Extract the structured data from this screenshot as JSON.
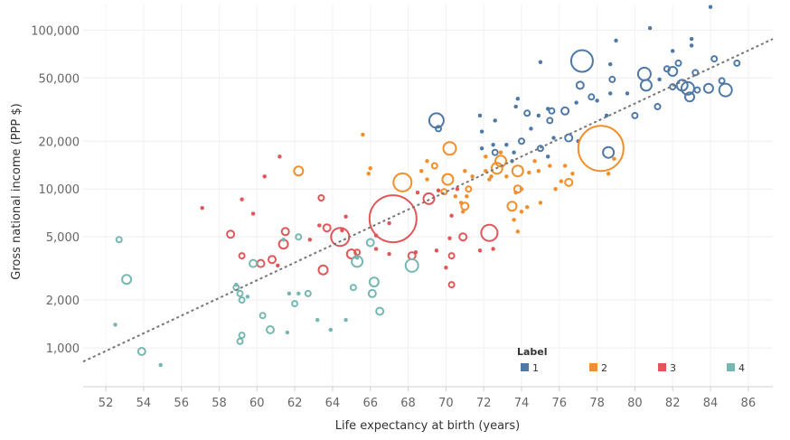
{
  "chart_data": {
    "type": "scatter",
    "xlabel": "Life expectancy at birth (years)",
    "ylabel": "Gross national income (PPP $)",
    "x_ticks": [
      52,
      54,
      56,
      58,
      60,
      62,
      64,
      66,
      68,
      70,
      72,
      74,
      76,
      78,
      80,
      82,
      84,
      86
    ],
    "xlim": [
      50.8,
      87.3
    ],
    "y_scale": "log",
    "y_ticks": [
      1000,
      2000,
      5000,
      10000,
      20000,
      50000,
      100000
    ],
    "y_tick_labels": [
      "1,000",
      "2,000",
      "5,000",
      "10,000",
      "20,000",
      "50,000",
      "100,000"
    ],
    "ylim": [
      570,
      145000
    ],
    "grid": true,
    "trendline": {
      "style": "dashed",
      "x": [
        50.8,
        87.3
      ],
      "y": [
        820,
        88000
      ]
    },
    "legend": {
      "title": "Label",
      "position": "bottom-right",
      "entries": [
        {
          "label": "1",
          "color": "#4e79a7"
        },
        {
          "label": "2",
          "color": "#f28e2b"
        },
        {
          "label": "3",
          "color": "#e15759"
        },
        {
          "label": "4",
          "color": "#76b7b2"
        }
      ]
    },
    "series": [
      {
        "name": "1",
        "color": "#4e79a7",
        "points": [
          [
            84.0,
            140000,
            2
          ],
          [
            83.0,
            88000,
            2
          ],
          [
            80.8,
            103000,
            2
          ],
          [
            79.0,
            86000,
            2
          ],
          [
            77.2,
            64000,
            12
          ],
          [
            75.0,
            63000,
            2
          ],
          [
            78.7,
            61000,
            2
          ],
          [
            82.0,
            74000,
            2
          ],
          [
            83.0,
            80000,
            2
          ],
          [
            85.4,
            62000,
            3
          ],
          [
            84.2,
            66000,
            3
          ],
          [
            82.3,
            62000,
            3
          ],
          [
            81.7,
            57000,
            3
          ],
          [
            82.0,
            55000,
            5
          ],
          [
            83.2,
            54000,
            3
          ],
          [
            80.5,
            53000,
            7
          ],
          [
            81.3,
            49000,
            2
          ],
          [
            80.6,
            45000,
            6
          ],
          [
            82.5,
            45000,
            6
          ],
          [
            82.8,
            43000,
            7
          ],
          [
            83.3,
            42000,
            3
          ],
          [
            84.6,
            48000,
            3
          ],
          [
            83.9,
            43000,
            5
          ],
          [
            84.8,
            42000,
            7
          ],
          [
            82.0,
            44000,
            3
          ],
          [
            82.9,
            38000,
            5
          ],
          [
            77.1,
            45000,
            4
          ],
          [
            78.8,
            49000,
            3
          ],
          [
            78.7,
            40000,
            2
          ],
          [
            77.7,
            38000,
            3
          ],
          [
            76.9,
            35000,
            2
          ],
          [
            76.3,
            31000,
            4
          ],
          [
            78.0,
            36000,
            2
          ],
          [
            79.6,
            40000,
            2
          ],
          [
            81.2,
            33000,
            3
          ],
          [
            80.0,
            29000,
            3
          ],
          [
            78.5,
            29000,
            2
          ],
          [
            75.6,
            31000,
            3
          ],
          [
            75.4,
            32000,
            2
          ],
          [
            73.8,
            37000,
            2
          ],
          [
            73.7,
            33000,
            2
          ],
          [
            74.3,
            30000,
            3
          ],
          [
            74.9,
            29000,
            2
          ],
          [
            75.5,
            27000,
            3
          ],
          [
            72.6,
            27000,
            2
          ],
          [
            71.8,
            29000,
            2
          ],
          [
            69.5,
            27000,
            8
          ],
          [
            69.6,
            24000,
            3
          ],
          [
            71.9,
            23000,
            2
          ],
          [
            74.5,
            24000,
            2
          ],
          [
            75.7,
            21000,
            2
          ],
          [
            76.5,
            21000,
            4
          ],
          [
            77.0,
            20000,
            2
          ],
          [
            74.0,
            20000,
            3
          ],
          [
            73.2,
            19000,
            2
          ],
          [
            72.5,
            19000,
            2
          ],
          [
            72.6,
            17000,
            3
          ],
          [
            75.0,
            18000,
            3
          ],
          [
            73.6,
            17000,
            2
          ],
          [
            78.6,
            17000,
            6
          ],
          [
            73.5,
            15000,
            2
          ],
          [
            75.4,
            16000,
            2
          ],
          [
            71.9,
            18000,
            2
          ]
        ]
      },
      {
        "name": "2",
        "color": "#f28e2b",
        "points": [
          [
            78.2,
            18000,
            25
          ],
          [
            70.2,
            18000,
            7
          ],
          [
            72.9,
            15000,
            6
          ],
          [
            72.7,
            13500,
            6
          ],
          [
            73.8,
            13000,
            6
          ],
          [
            72.9,
            17000,
            2
          ],
          [
            69.4,
            14000,
            3
          ],
          [
            69.0,
            15000,
            2
          ],
          [
            71.0,
            13000,
            2
          ],
          [
            72.1,
            16000,
            2
          ],
          [
            74.7,
            15000,
            2
          ],
          [
            75.5,
            14000,
            2
          ],
          [
            76.3,
            14000,
            2
          ],
          [
            74.9,
            13000,
            2
          ],
          [
            72.1,
            13000,
            2
          ],
          [
            71.4,
            12000,
            2
          ],
          [
            72.3,
            11500,
            2
          ],
          [
            70.1,
            11500,
            6
          ],
          [
            69.0,
            11500,
            2
          ],
          [
            68.7,
            13000,
            2
          ],
          [
            71.2,
            10000,
            3
          ],
          [
            72.4,
            12000,
            2
          ],
          [
            67.7,
            11000,
            10
          ],
          [
            66.0,
            13500,
            2
          ],
          [
            65.9,
            12500,
            2
          ],
          [
            65.6,
            22000,
            2
          ],
          [
            62.2,
            13000,
            5
          ],
          [
            69.9,
            9600,
            3
          ],
          [
            70.5,
            9000,
            2
          ],
          [
            70.8,
            8200,
            2
          ],
          [
            71.0,
            7800,
            4
          ],
          [
            73.8,
            10000,
            4
          ],
          [
            74.0,
            10000,
            2
          ],
          [
            73.7,
            9500,
            2
          ],
          [
            75.8,
            10000,
            2
          ],
          [
            76.5,
            11000,
            4
          ],
          [
            75.0,
            8200,
            2
          ],
          [
            74.3,
            7700,
            2
          ],
          [
            73.5,
            7800,
            5
          ],
          [
            74.0,
            7200,
            2
          ],
          [
            73.6,
            6400,
            2
          ],
          [
            73.8,
            5400,
            2
          ],
          [
            71.1,
            9000,
            2
          ],
          [
            70.9,
            7200,
            2
          ],
          [
            76.7,
            12500,
            2
          ],
          [
            78.6,
            12500,
            2
          ],
          [
            76.1,
            11200,
            2
          ],
          [
            78.9,
            15500,
            2
          ],
          [
            74.4,
            12700,
            2
          ],
          [
            73.2,
            12000,
            2
          ]
        ]
      },
      {
        "name": "3",
        "color": "#e15759",
        "points": [
          [
            67.2,
            6500,
            26
          ],
          [
            64.4,
            5000,
            10
          ],
          [
            72.3,
            5300,
            9
          ],
          [
            69.1,
            8700,
            6
          ],
          [
            61.4,
            4500,
            5
          ],
          [
            60.2,
            3400,
            4
          ],
          [
            59.2,
            3800,
            3
          ],
          [
            63.5,
            3100,
            5
          ],
          [
            65.0,
            3900,
            5
          ],
          [
            65.3,
            4000,
            3
          ],
          [
            66.3,
            4200,
            2
          ],
          [
            68.2,
            3800,
            4
          ],
          [
            69.5,
            4100,
            2
          ],
          [
            70.3,
            3800,
            3
          ],
          [
            70.2,
            4900,
            2
          ],
          [
            70.9,
            5000,
            4
          ],
          [
            71.8,
            4100,
            2
          ],
          [
            72.5,
            4200,
            2
          ],
          [
            70.0,
            3200,
            2
          ],
          [
            70.3,
            2500,
            3
          ],
          [
            58.6,
            5200,
            4
          ],
          [
            61.5,
            5400,
            4
          ],
          [
            63.7,
            5700,
            4
          ],
          [
            64.5,
            5500,
            2
          ],
          [
            67.0,
            6100,
            2
          ],
          [
            69.6,
            9800,
            2
          ],
          [
            70.6,
            10000,
            2
          ],
          [
            70.3,
            6800,
            2
          ],
          [
            68.5,
            9500,
            2
          ],
          [
            61.2,
            16000,
            2
          ],
          [
            60.4,
            12000,
            2
          ],
          [
            63.4,
            8800,
            3
          ],
          [
            59.2,
            8600,
            2
          ],
          [
            57.1,
            7600,
            2
          ],
          [
            59.8,
            7000,
            2
          ],
          [
            62.8,
            4800,
            2
          ],
          [
            61.1,
            3300,
            2
          ],
          [
            60.8,
            3600,
            4
          ],
          [
            63.3,
            5900,
            2
          ],
          [
            64.7,
            6700,
            2
          ],
          [
            66.3,
            5100,
            2
          ],
          [
            67.0,
            3900,
            2
          ],
          [
            68.4,
            4000,
            2
          ]
        ]
      },
      {
        "name": "4",
        "color": "#76b7b2",
        "points": [
          [
            68.2,
            3300,
            7
          ],
          [
            65.3,
            3500,
            6
          ],
          [
            66.0,
            4600,
            4
          ],
          [
            62.2,
            5000,
            3
          ],
          [
            61.4,
            4800,
            2
          ],
          [
            59.8,
            3400,
            4
          ],
          [
            66.2,
            2600,
            5
          ],
          [
            65.3,
            3700,
            2
          ],
          [
            66.1,
            2200,
            4
          ],
          [
            66.5,
            1700,
            4
          ],
          [
            58.9,
            2400,
            3
          ],
          [
            59.1,
            2200,
            3
          ],
          [
            59.2,
            2000,
            3
          ],
          [
            59.5,
            2100,
            2
          ],
          [
            60.3,
            1600,
            3
          ],
          [
            60.7,
            1300,
            4
          ],
          [
            62.0,
            1900,
            3
          ],
          [
            62.7,
            2200,
            3
          ],
          [
            61.7,
            2200,
            2
          ],
          [
            62.2,
            2200,
            2
          ],
          [
            63.2,
            1500,
            2
          ],
          [
            63.9,
            1300,
            2
          ],
          [
            64.7,
            1500,
            2
          ],
          [
            65.1,
            2400,
            3
          ],
          [
            59.2,
            1200,
            3
          ],
          [
            59.1,
            1100,
            3
          ],
          [
            58.9,
            2500,
            2
          ],
          [
            61.6,
            1250,
            2
          ],
          [
            52.7,
            4800,
            3
          ],
          [
            53.1,
            2700,
            5
          ],
          [
            52.5,
            1400,
            2
          ],
          [
            53.9,
            950,
            4
          ],
          [
            54.9,
            780,
            2
          ]
        ]
      }
    ]
  }
}
